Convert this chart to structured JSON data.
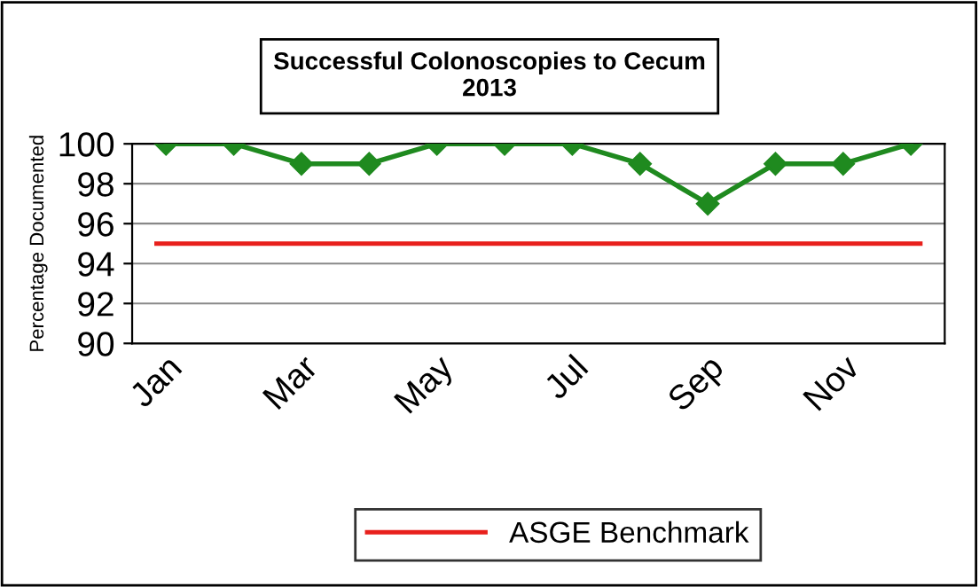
{
  "chart_data": {
    "type": "line",
    "title": "Successful Colonoscopies to Cecum\n2013",
    "ylabel": "Percentage Documented",
    "categories": [
      "Jan",
      null,
      "Mar",
      null,
      "May",
      null,
      "Jul",
      null,
      "Sep",
      null,
      "Nov",
      null
    ],
    "series": [
      {
        "color": "#1f8a1f",
        "values": [
          100,
          100,
          99,
          99,
          100,
          100,
          100,
          99,
          97,
          99,
          99,
          100
        ]
      }
    ],
    "ref_lines": [
      {
        "axis": "y",
        "value": 95,
        "label": "ASGE Benchmark",
        "color": "#e8201c"
      }
    ],
    "ylim": [
      90,
      100
    ],
    "yticks": [
      90,
      92,
      94,
      96,
      98,
      100
    ],
    "grid": "y",
    "legend": "bottom",
    "marker": "diamond",
    "line_style": "solid"
  }
}
